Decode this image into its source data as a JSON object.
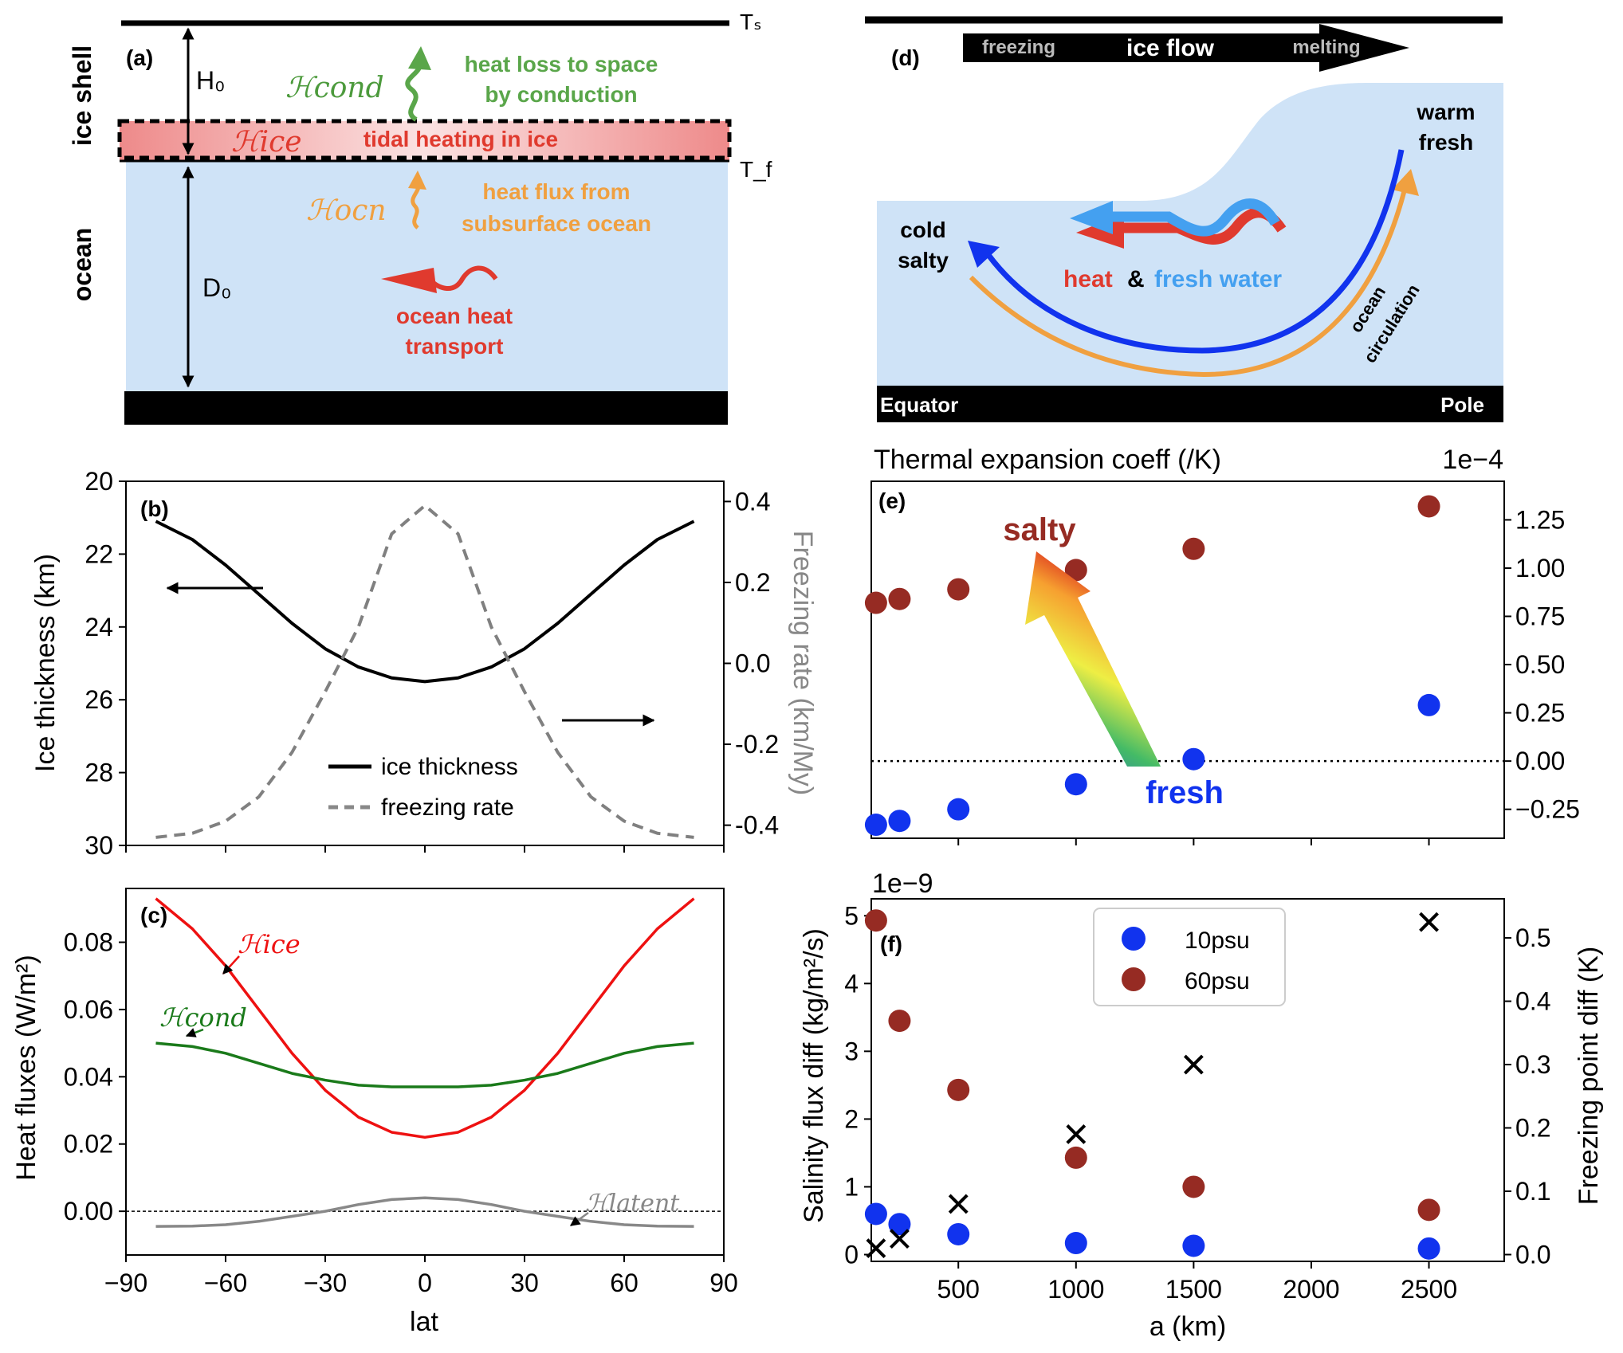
{
  "panel_a": {
    "label": "(a)",
    "ts": "Tₛ",
    "tf": "T_f",
    "h0": "H₀",
    "d0": "D₀",
    "side_ice": "ice shell",
    "side_ocean": "ocean",
    "hcond": "ℋcond",
    "hice": "ℋice",
    "hocn": "ℋocn",
    "cond_line1": "heat loss to space",
    "cond_line2": "by conduction",
    "tidal": "tidal heating in ice",
    "ocn_line1": "heat flux from",
    "ocn_line2": "subsurface ocean",
    "transport_line1": "ocean heat",
    "transport_line2": "transport",
    "colors": {
      "ice_band": "#f08a8a",
      "ocean": "#cfe3f7",
      "green": "#5aa64a",
      "orange": "#f0a040",
      "red": "#e03a2e"
    }
  },
  "panel_d": {
    "label": "(d)",
    "arrow_left": "freezing",
    "arrow_mid": "ice flow",
    "arrow_right": "melting",
    "cold1": "cold",
    "cold2": "salty",
    "warm1": "warm",
    "warm2": "fresh",
    "heat": "heat",
    "amp": "&",
    "fresh_water": "fresh water",
    "circ1": "ocean",
    "circ2": "circulation",
    "equator": "Equator",
    "pole": "Pole"
  },
  "chart_data": [
    {
      "id": "b",
      "type": "line",
      "label": "(b)",
      "ylabel_left": "Ice thickness (km)",
      "ylabel_right": "Freezing rate (km/My)",
      "ylim_left": [
        30,
        20
      ],
      "ylim_right": [
        -0.45,
        0.45
      ],
      "yticks_left": [
        "20",
        "22",
        "24",
        "26",
        "28",
        "30"
      ],
      "yticks_right": [
        "0.4",
        "0.2",
        "0.0",
        "-0.2",
        "-0.4"
      ],
      "x": [
        -81,
        -70,
        -60,
        -50,
        -40,
        -30,
        -20,
        -10,
        0,
        10,
        20,
        30,
        40,
        50,
        60,
        70,
        81
      ],
      "series": [
        {
          "name": "ice thickness",
          "axis": "left",
          "color": "#000000",
          "style": "solid",
          "values": [
            21.1,
            21.6,
            22.3,
            23.1,
            23.9,
            24.6,
            25.1,
            25.4,
            25.5,
            25.4,
            25.1,
            24.6,
            23.9,
            23.1,
            22.3,
            21.6,
            21.1
          ]
        },
        {
          "name": "freezing rate",
          "axis": "right",
          "color": "#808080",
          "style": "dashed",
          "values": [
            -0.43,
            -0.42,
            -0.39,
            -0.33,
            -0.22,
            -0.07,
            0.09,
            0.32,
            0.39,
            0.32,
            0.09,
            -0.07,
            -0.22,
            -0.33,
            -0.39,
            -0.42,
            -0.43
          ]
        }
      ],
      "legend": [
        "ice thickness",
        "freezing rate"
      ],
      "legend_position": "lower-center"
    },
    {
      "id": "c",
      "type": "line",
      "label": "(c)",
      "xlabel": "lat",
      "ylabel": "Heat fluxes (W/m²)",
      "xlim": [
        -90,
        90
      ],
      "ylim": [
        -0.013,
        0.096
      ],
      "xticks": [
        "−90",
        "−60",
        "−30",
        "0",
        "30",
        "60",
        "90"
      ],
      "yticks": [
        "0.00",
        "0.02",
        "0.04",
        "0.06",
        "0.08"
      ],
      "x": [
        -81,
        -70,
        -60,
        -50,
        -40,
        -30,
        -20,
        -10,
        0,
        10,
        20,
        30,
        40,
        50,
        60,
        70,
        81
      ],
      "series": [
        {
          "name": "ℋice",
          "color": "#ee1111",
          "values": [
            0.093,
            0.084,
            0.073,
            0.06,
            0.047,
            0.036,
            0.028,
            0.0235,
            0.022,
            0.0235,
            0.028,
            0.036,
            0.047,
            0.06,
            0.073,
            0.084,
            0.093
          ]
        },
        {
          "name": "ℋcond",
          "color": "#1a7a1a",
          "values": [
            0.05,
            0.049,
            0.047,
            0.044,
            0.041,
            0.039,
            0.0375,
            0.037,
            0.037,
            0.037,
            0.0375,
            0.039,
            0.041,
            0.044,
            0.047,
            0.049,
            0.05
          ]
        },
        {
          "name": "ℋlatent",
          "color": "#888888",
          "values": [
            -0.0045,
            -0.0044,
            -0.004,
            -0.003,
            -0.0015,
            0.0,
            0.002,
            0.0035,
            0.004,
            0.0035,
            0.002,
            0.0,
            -0.0015,
            -0.003,
            -0.004,
            -0.0044,
            -0.0045
          ]
        }
      ],
      "annotations": [
        "ℋice",
        "ℋcond",
        "ℋlatent"
      ]
    },
    {
      "id": "e",
      "type": "scatter",
      "label": "(e)",
      "title": "Thermal expansion coeff (/K)",
      "offset_text": "1e−4",
      "xlim": [
        130,
        2820
      ],
      "ylim": [
        -0.4,
        1.45
      ],
      "yticks": [
        "−0.25",
        "0.00",
        "0.25",
        "0.50",
        "0.75",
        "1.00",
        "1.25"
      ],
      "series": [
        {
          "name": "10psu",
          "color": "#1133ee",
          "x": [
            150,
            250,
            500,
            1000,
            1500,
            2500
          ],
          "values": [
            -0.33,
            -0.31,
            -0.25,
            -0.12,
            0.01,
            0.29
          ]
        },
        {
          "name": "60psu",
          "color": "#962b23",
          "x": [
            150,
            250,
            500,
            1000,
            1500,
            2500
          ],
          "values": [
            0.82,
            0.84,
            0.89,
            0.99,
            1.1,
            1.32
          ]
        }
      ],
      "annotations": [
        "salty",
        "fresh"
      ]
    },
    {
      "id": "f",
      "type": "scatter",
      "label": "(f)",
      "xlabel": "a (km)",
      "ylabel_left": "Salinity flux diff (kg/m²/s)",
      "ylabel_right": "Freezing point diff (K)",
      "offset_text": "1e−9",
      "xlim": [
        130,
        2820
      ],
      "ylim_left": [
        -0.1,
        5.25
      ],
      "ylim_right": [
        -0.0107,
        0.5617
      ],
      "xticks": [
        "500",
        "1000",
        "1500",
        "2000",
        "2500"
      ],
      "yticks_left": [
        "0",
        "1",
        "2",
        "3",
        "4",
        "5"
      ],
      "yticks_right": [
        "0.0",
        "0.1",
        "0.2",
        "0.3",
        "0.4",
        "0.5"
      ],
      "series": [
        {
          "name": "10psu",
          "axis": "left",
          "marker": "circle",
          "color": "#1133ee",
          "x": [
            150,
            250,
            500,
            1000,
            1500,
            2500
          ],
          "values": [
            0.6,
            0.45,
            0.3,
            0.17,
            0.13,
            0.09
          ]
        },
        {
          "name": "60psu",
          "axis": "left",
          "marker": "circle",
          "color": "#962b23",
          "x": [
            150,
            250,
            500,
            1000,
            1500,
            2500
          ],
          "values": [
            4.93,
            3.45,
            2.43,
            1.43,
            1.0,
            0.66
          ]
        },
        {
          "name": "freezing point diff",
          "axis": "right",
          "marker": "x",
          "color": "#000000",
          "x": [
            150,
            250,
            500,
            1000,
            1500,
            2500
          ],
          "values": [
            0.01,
            0.025,
            0.08,
            0.19,
            0.3,
            0.525
          ]
        }
      ],
      "legend": [
        "10psu",
        "60psu"
      ],
      "legend_position": "upper-center"
    }
  ]
}
